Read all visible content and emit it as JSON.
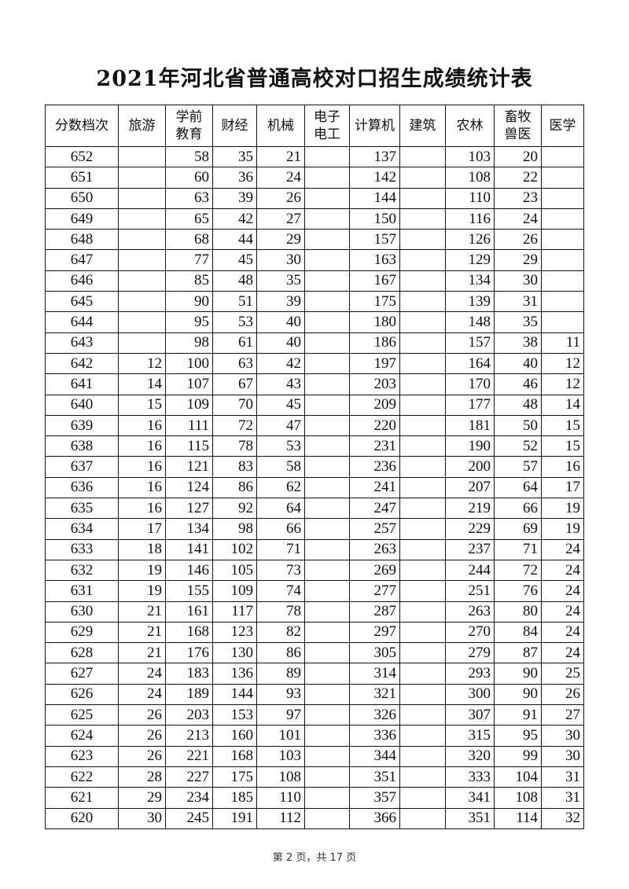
{
  "title": "2021年河北省普通高校对口招生成绩统计表",
  "table": {
    "headers": [
      "分数档次",
      "旅游",
      "学前\n教育",
      "财经",
      "机械",
      "电子\n电工",
      "计算机",
      "建筑",
      "农林",
      "畜牧\n兽医",
      "医学"
    ],
    "rows": [
      [
        "652",
        "",
        "58",
        "35",
        "21",
        "",
        "137",
        "",
        "103",
        "20",
        ""
      ],
      [
        "651",
        "",
        "60",
        "36",
        "24",
        "",
        "142",
        "",
        "108",
        "22",
        ""
      ],
      [
        "650",
        "",
        "63",
        "39",
        "26",
        "",
        "144",
        "",
        "110",
        "23",
        ""
      ],
      [
        "649",
        "",
        "65",
        "42",
        "27",
        "",
        "150",
        "",
        "116",
        "24",
        ""
      ],
      [
        "648",
        "",
        "68",
        "44",
        "29",
        "",
        "157",
        "",
        "126",
        "26",
        ""
      ],
      [
        "647",
        "",
        "77",
        "45",
        "30",
        "",
        "163",
        "",
        "129",
        "29",
        ""
      ],
      [
        "646",
        "",
        "85",
        "48",
        "35",
        "",
        "167",
        "",
        "134",
        "30",
        ""
      ],
      [
        "645",
        "",
        "90",
        "51",
        "39",
        "",
        "175",
        "",
        "139",
        "31",
        ""
      ],
      [
        "644",
        "",
        "95",
        "53",
        "40",
        "",
        "180",
        "",
        "148",
        "35",
        ""
      ],
      [
        "643",
        "",
        "98",
        "61",
        "40",
        "",
        "186",
        "",
        "157",
        "38",
        "11"
      ],
      [
        "642",
        "12",
        "100",
        "63",
        "42",
        "",
        "197",
        "",
        "164",
        "40",
        "12"
      ],
      [
        "641",
        "14",
        "107",
        "67",
        "43",
        "",
        "203",
        "",
        "170",
        "46",
        "12"
      ],
      [
        "640",
        "15",
        "109",
        "70",
        "45",
        "",
        "209",
        "",
        "177",
        "48",
        "14"
      ],
      [
        "639",
        "16",
        "111",
        "72",
        "47",
        "",
        "220",
        "",
        "181",
        "50",
        "15"
      ],
      [
        "638",
        "16",
        "115",
        "78",
        "53",
        "",
        "231",
        "",
        "190",
        "52",
        "15"
      ],
      [
        "637",
        "16",
        "121",
        "83",
        "58",
        "",
        "236",
        "",
        "200",
        "57",
        "16"
      ],
      [
        "636",
        "16",
        "124",
        "86",
        "62",
        "",
        "241",
        "",
        "207",
        "64",
        "17"
      ],
      [
        "635",
        "16",
        "127",
        "92",
        "64",
        "",
        "247",
        "",
        "219",
        "66",
        "19"
      ],
      [
        "634",
        "17",
        "134",
        "98",
        "66",
        "",
        "257",
        "",
        "229",
        "69",
        "19"
      ],
      [
        "633",
        "18",
        "141",
        "102",
        "71",
        "",
        "263",
        "",
        "237",
        "71",
        "24"
      ],
      [
        "632",
        "19",
        "146",
        "105",
        "73",
        "",
        "269",
        "",
        "244",
        "72",
        "24"
      ],
      [
        "631",
        "19",
        "155",
        "109",
        "74",
        "",
        "277",
        "",
        "251",
        "76",
        "24"
      ],
      [
        "630",
        "21",
        "161",
        "117",
        "78",
        "",
        "287",
        "",
        "263",
        "80",
        "24"
      ],
      [
        "629",
        "21",
        "168",
        "123",
        "82",
        "",
        "297",
        "",
        "270",
        "84",
        "24"
      ],
      [
        "628",
        "21",
        "176",
        "130",
        "86",
        "",
        "305",
        "",
        "279",
        "87",
        "24"
      ],
      [
        "627",
        "24",
        "183",
        "136",
        "89",
        "",
        "314",
        "",
        "293",
        "90",
        "25"
      ],
      [
        "626",
        "24",
        "189",
        "144",
        "93",
        "",
        "321",
        "",
        "300",
        "90",
        "26"
      ],
      [
        "625",
        "26",
        "203",
        "153",
        "97",
        "",
        "326",
        "",
        "307",
        "91",
        "27"
      ],
      [
        "624",
        "26",
        "213",
        "160",
        "101",
        "",
        "336",
        "",
        "315",
        "95",
        "30"
      ],
      [
        "623",
        "26",
        "221",
        "168",
        "103",
        "",
        "344",
        "",
        "320",
        "99",
        "30"
      ],
      [
        "622",
        "28",
        "227",
        "175",
        "108",
        "",
        "351",
        "",
        "333",
        "104",
        "31"
      ],
      [
        "621",
        "29",
        "234",
        "185",
        "110",
        "",
        "357",
        "",
        "341",
        "108",
        "31"
      ],
      [
        "620",
        "30",
        "245",
        "191",
        "112",
        "",
        "366",
        "",
        "351",
        "114",
        "32"
      ]
    ]
  },
  "footer": "第 2 页，共 17 页"
}
